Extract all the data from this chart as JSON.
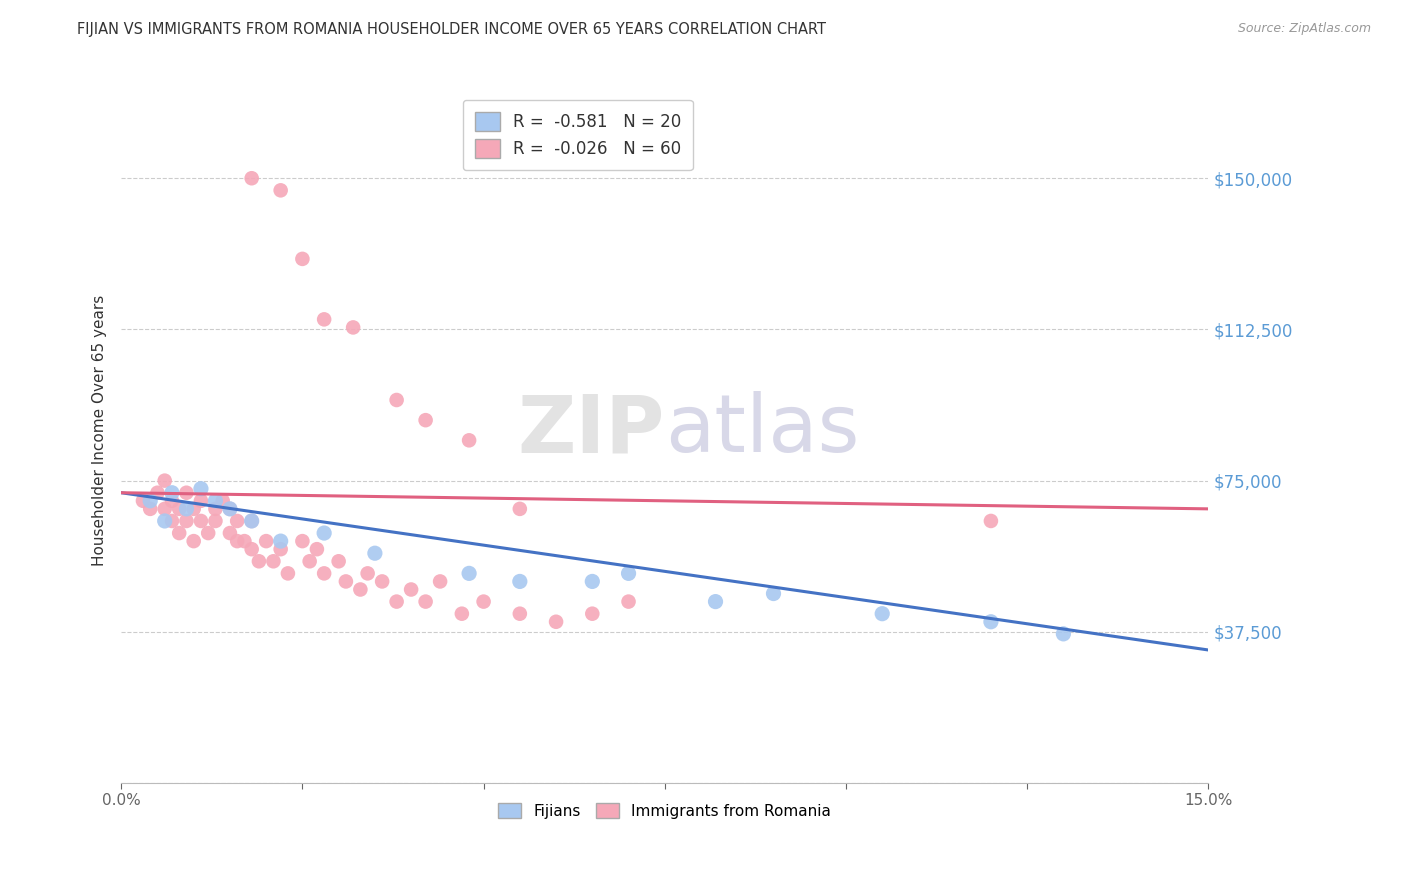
{
  "title": "FIJIAN VS IMMIGRANTS FROM ROMANIA HOUSEHOLDER INCOME OVER 65 YEARS CORRELATION CHART",
  "source": "Source: ZipAtlas.com",
  "ylabel": "Householder Income Over 65 years",
  "xlim": [
    0.0,
    0.15
  ],
  "ylim": [
    0,
    175000
  ],
  "yticks": [
    0,
    37500,
    75000,
    112500,
    150000
  ],
  "ytick_labels": [
    "",
    "$37,500",
    "$75,000",
    "$112,500",
    "$150,000"
  ],
  "xticks": [
    0.0,
    0.025,
    0.05,
    0.075,
    0.1,
    0.125,
    0.15
  ],
  "xtick_labels": [
    "0.0%",
    "",
    "",
    "",
    "",
    "",
    "15.0%"
  ],
  "fijian_color": "#a8c8f0",
  "romania_color": "#f5a8b8",
  "fijian_line_color": "#4472c4",
  "romania_line_color": "#e06080",
  "legend_fijian_R": "-0.581",
  "legend_fijian_N": "20",
  "legend_romania_R": "-0.026",
  "legend_romania_N": "60",
  "watermark_zip": "ZIP",
  "watermark_atlas": "atlas",
  "fijian_x": [
    0.004,
    0.006,
    0.007,
    0.009,
    0.011,
    0.013,
    0.015,
    0.018,
    0.022,
    0.028,
    0.035,
    0.048,
    0.055,
    0.065,
    0.07,
    0.082,
    0.09,
    0.105,
    0.12,
    0.13
  ],
  "fijian_y": [
    70000,
    65000,
    72000,
    68000,
    73000,
    70000,
    68000,
    65000,
    60000,
    62000,
    57000,
    52000,
    50000,
    50000,
    52000,
    45000,
    47000,
    42000,
    40000,
    37000
  ],
  "romania_x": [
    0.003,
    0.004,
    0.005,
    0.006,
    0.006,
    0.007,
    0.007,
    0.008,
    0.008,
    0.009,
    0.009,
    0.01,
    0.01,
    0.011,
    0.011,
    0.012,
    0.013,
    0.013,
    0.014,
    0.015,
    0.015,
    0.016,
    0.016,
    0.017,
    0.018,
    0.018,
    0.019,
    0.02,
    0.021,
    0.022,
    0.023,
    0.025,
    0.026,
    0.027,
    0.028,
    0.03,
    0.031,
    0.033,
    0.034,
    0.036,
    0.038,
    0.04,
    0.042,
    0.044,
    0.047,
    0.05,
    0.055,
    0.06,
    0.065,
    0.07,
    0.018,
    0.022,
    0.025,
    0.028,
    0.032,
    0.038,
    0.042,
    0.048,
    0.055,
    0.12
  ],
  "romania_y": [
    70000,
    68000,
    72000,
    68000,
    75000,
    65000,
    70000,
    62000,
    68000,
    65000,
    72000,
    68000,
    60000,
    65000,
    70000,
    62000,
    68000,
    65000,
    70000,
    62000,
    68000,
    60000,
    65000,
    60000,
    58000,
    65000,
    55000,
    60000,
    55000,
    58000,
    52000,
    60000,
    55000,
    58000,
    52000,
    55000,
    50000,
    48000,
    52000,
    50000,
    45000,
    48000,
    45000,
    50000,
    42000,
    45000,
    42000,
    40000,
    42000,
    45000,
    150000,
    147000,
    130000,
    115000,
    113000,
    95000,
    90000,
    85000,
    68000,
    65000
  ]
}
